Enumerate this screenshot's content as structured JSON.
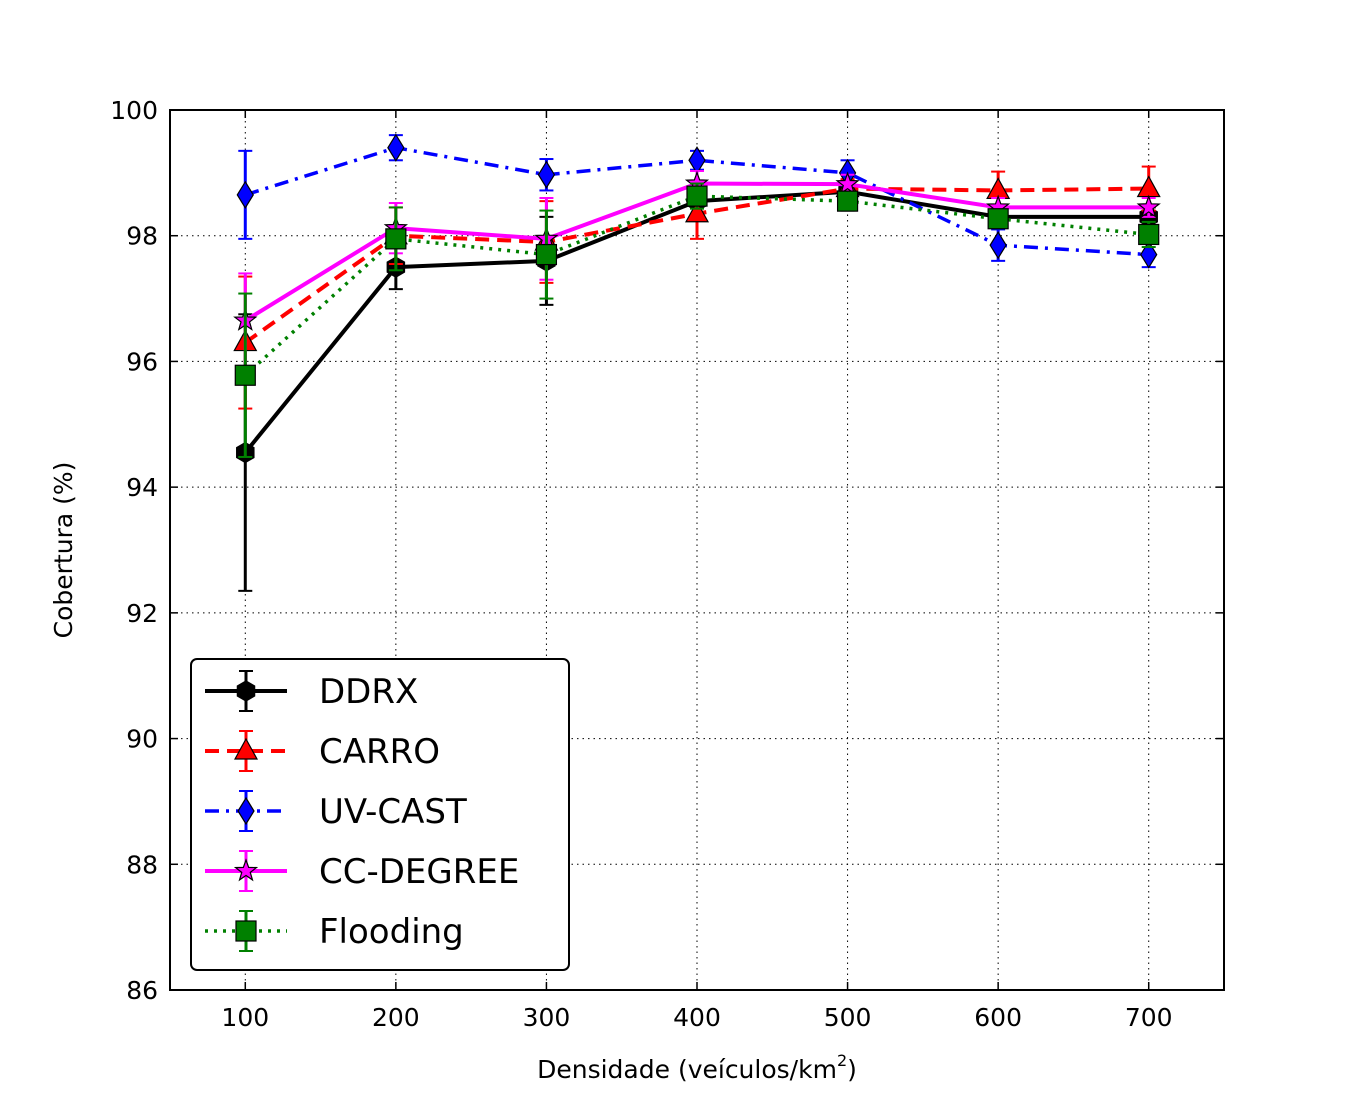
{
  "chart_data": {
    "type": "line",
    "xlabel": "Densidade (veículos/km",
    "xlabel_sup": "2",
    "xlabel_suffix": ")",
    "ylabel": "Cobertura (%)",
    "xlim": [
      50,
      750
    ],
    "ylim": [
      86,
      100
    ],
    "x": [
      100,
      200,
      300,
      400,
      500,
      600,
      700
    ],
    "x_ticks": [
      "100",
      "200",
      "300",
      "400",
      "500",
      "600",
      "700"
    ],
    "y_ticks": [
      "86",
      "88",
      "90",
      "92",
      "94",
      "96",
      "98",
      "100"
    ],
    "grid": true,
    "legend_position": "lower-left",
    "series": [
      {
        "name": "DDRX",
        "color": "#000000",
        "line_style": "solid",
        "marker": "hexagon",
        "values": [
          94.55,
          97.5,
          97.6,
          98.55,
          98.7,
          98.3,
          98.3
        ],
        "errors": [
          2.2,
          0.35,
          0.7,
          0.25,
          0.15,
          0.15,
          0.15
        ]
      },
      {
        "name": "CARRO",
        "color": "#ff0000",
        "line_style": "dashed",
        "marker": "triangle",
        "values": [
          96.3,
          98.0,
          97.9,
          98.35,
          98.75,
          98.72,
          98.75
        ],
        "errors": [
          1.05,
          0.45,
          0.65,
          0.4,
          0.15,
          0.3,
          0.35
        ]
      },
      {
        "name": "UV-CAST",
        "color": "#0000ff",
        "line_style": "dashdot",
        "marker": "diamond",
        "values": [
          98.65,
          99.4,
          98.97,
          99.2,
          99.0,
          97.85,
          97.7
        ],
        "errors": [
          0.7,
          0.2,
          0.25,
          0.15,
          0.2,
          0.25,
          0.2
        ]
      },
      {
        "name": "CC-DEGREE",
        "color": "#ff00ff",
        "line_style": "solid",
        "marker": "star",
        "values": [
          96.65,
          98.12,
          97.95,
          98.83,
          98.82,
          98.45,
          98.45
        ],
        "errors": [
          0.75,
          0.4,
          0.65,
          0.2,
          0.15,
          0.15,
          0.15
        ]
      },
      {
        "name": "Flooding",
        "color": "#008000",
        "line_style": "dotted",
        "marker": "square",
        "values": [
          95.78,
          97.95,
          97.7,
          98.63,
          98.55,
          98.27,
          98.02
        ],
        "errors": [
          1.3,
          0.5,
          0.7,
          0.2,
          0.15,
          0.15,
          0.2
        ]
      }
    ]
  }
}
